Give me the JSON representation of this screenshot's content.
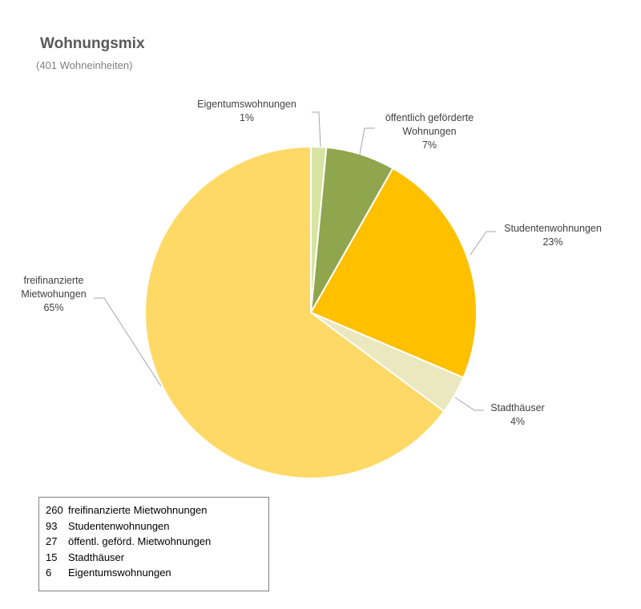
{
  "chart_data": {
    "type": "pie",
    "title": "Wohnungsmix",
    "subtitle": "(401 Wohneinheiten)",
    "start_angle_deg": 0,
    "direction": "clockwise",
    "slices": [
      {
        "label": "Eigentumswohnungen",
        "label_lines": [
          "Eigentumswohnungen"
        ],
        "value": 6,
        "percent_label": "1%",
        "color": "#d7e4a3"
      },
      {
        "label": "öffentlich geförderte Wohnungen",
        "label_lines": [
          "öffentlich  geförderte",
          "Wohnungen"
        ],
        "value": 27,
        "percent_label": "7%",
        "color": "#8fa54e"
      },
      {
        "label": "Studentenwohnungen",
        "label_lines": [
          "Studentenwohnungen"
        ],
        "value": 93,
        "percent_label": "23%",
        "color": "#ffc000"
      },
      {
        "label": "Stadthäuser",
        "label_lines": [
          "Stadthäuser"
        ],
        "value": 15,
        "percent_label": "4%",
        "color": "#ebe7be"
      },
      {
        "label": "freifinanzierte Mietwohungen",
        "label_lines": [
          "freifinanzierte",
          "Mietwohungen"
        ],
        "value": 260,
        "percent_label": "65%",
        "color": "#ffd966"
      }
    ],
    "legend": {
      "position": "bottom-left",
      "rows": [
        {
          "count": "260",
          "text": "freifinanzierte Mietwohnungen"
        },
        {
          "count": "93",
          "text": "Studentenwohnungen"
        },
        {
          "count": "27",
          "text": "öffentl. geförd. Mietwohnungen"
        },
        {
          "count": "15",
          "text": "Stadthäuser"
        },
        {
          "count": "6",
          "text": "Eigentumswohnungen"
        }
      ]
    }
  }
}
